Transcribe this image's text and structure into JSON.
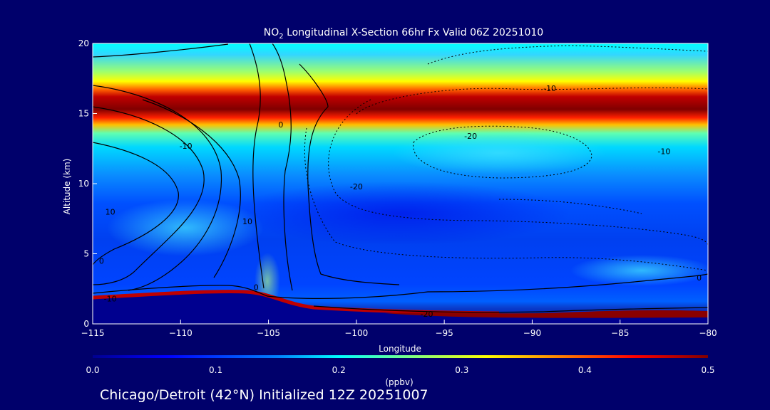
{
  "chart_data": {
    "type": "heatmap",
    "title_main": "NO",
    "title_sub": "2",
    "title_rest": " Longitudinal X-Section 66hr  Fx Valid 06Z 20251010",
    "xlabel": "Longitude",
    "ylabel": "Altitude (km)",
    "xlim": [
      -115,
      -80
    ],
    "ylim": [
      0,
      20
    ],
    "x_ticks": [
      -115,
      -110,
      -105,
      -100,
      -95,
      -90,
      -85,
      -80
    ],
    "x_tick_labels": [
      "−115",
      "−110",
      "−105",
      "−100",
      "−95",
      "−90",
      "−85",
      "−80"
    ],
    "y_ticks": [
      0,
      5,
      10,
      15,
      20
    ],
    "y_tick_labels": [
      "0",
      "5",
      "10",
      "15",
      "20"
    ],
    "colorbar": {
      "label": "(ppbv)",
      "range": [
        0.0,
        0.5
      ],
      "ticks": [
        0.0,
        0.1,
        0.2,
        0.3,
        0.4,
        0.5
      ],
      "tick_labels": [
        "0.0",
        "0.1",
        "0.2",
        "0.3",
        "0.4",
        "0.5"
      ],
      "colormap": [
        "#00008f",
        "#0000ff",
        "#0080ff",
        "#00ffff",
        "#80ff80",
        "#ffff00",
        "#ff8000",
        "#ff0000",
        "#800000"
      ]
    },
    "no2_field_profile": {
      "description_units": "ppbv",
      "peak_layer_altitude_km": 15.8,
      "peak_value": 0.5,
      "surface_layer_max": 0.5
    },
    "contour_labels": [
      {
        "text": "-10",
        "lon": -89,
        "alt": 16.6
      },
      {
        "text": "-20",
        "lon": -93.5,
        "alt": 13.2
      },
      {
        "text": "-10",
        "lon": -82.5,
        "alt": 12.1
      },
      {
        "text": "-20",
        "lon": -100,
        "alt": 9.6
      },
      {
        "text": "-10",
        "lon": -109.7,
        "alt": 12.5
      },
      {
        "text": "10",
        "lon": -114,
        "alt": 7.8
      },
      {
        "text": "10",
        "lon": -106.2,
        "alt": 7.1
      },
      {
        "text": "0",
        "lon": -114.5,
        "alt": 4.3
      },
      {
        "text": "0",
        "lon": -105.7,
        "alt": 2.4
      },
      {
        "text": "-10",
        "lon": -114,
        "alt": 1.6
      },
      {
        "text": "0",
        "lon": -104.3,
        "alt": 14.0
      },
      {
        "text": "0",
        "lon": -80.5,
        "alt": 3.1
      },
      {
        "text": "-20",
        "lon": -96,
        "alt": 0.5
      }
    ],
    "caption": "Chicago/Detroit (42°N) Initialized 12Z 20251007"
  }
}
